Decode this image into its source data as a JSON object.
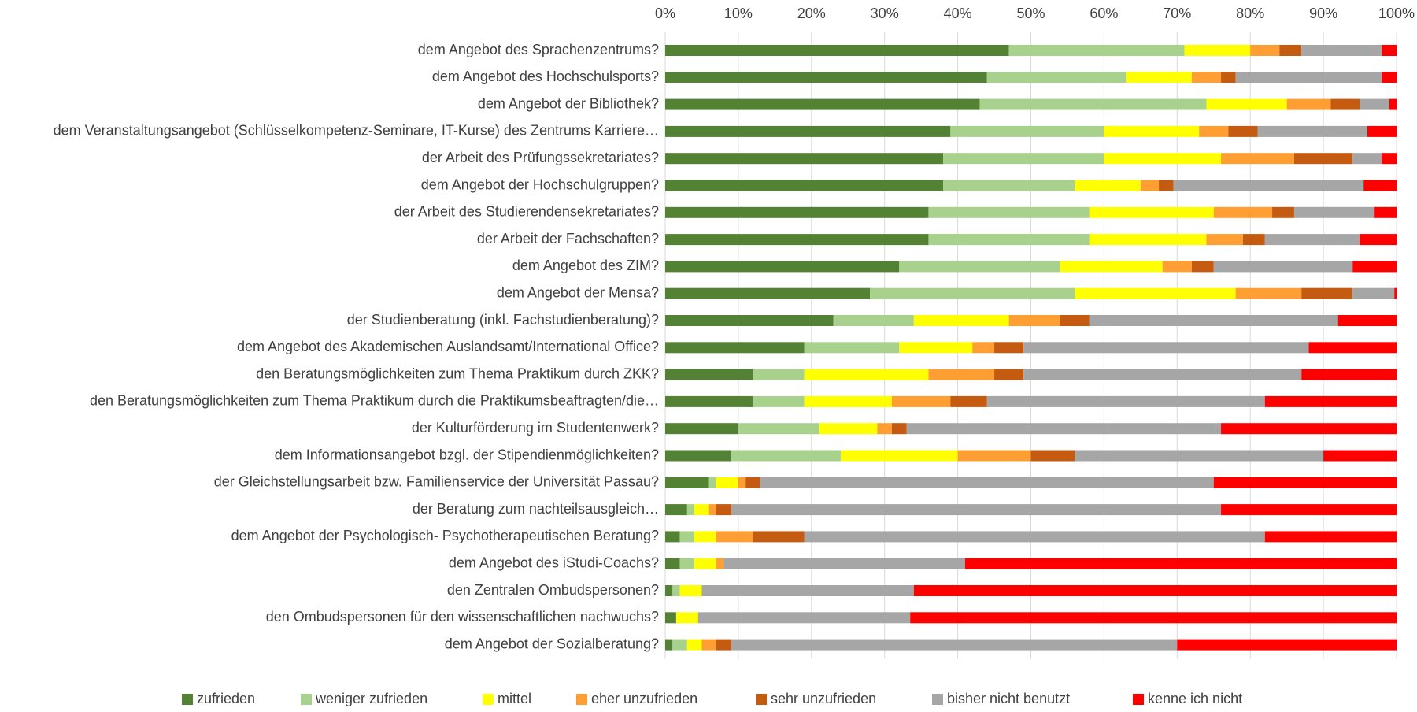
{
  "chart_data": {
    "type": "stacked_barh",
    "categories": [
      "dem Angebot des Sprachenzentrums?",
      "dem Angebot des Hochschulsports?",
      "dem Angebot der Bibliothek?",
      "dem Veranstaltungsangebot (Schlüsselkompetenz-Seminare, IT-Kurse) des Zentrums Karriere…",
      "der Arbeit des Prüfungssekretariates?",
      "dem Angebot der Hochschulgruppen?",
      "der Arbeit des Studierendensekretariates?",
      "der Arbeit der Fachschaften?",
      "dem Angebot des ZIM?",
      "dem Angebot der Mensa?",
      "der Studienberatung (inkl. Fachstudienberatung)?",
      "dem Angebot des Akademischen Auslandsamt/International Office?",
      "den Beratungsmöglichkeiten zum Thema Praktikum durch ZKK?",
      "den Beratungsmöglichkeiten zum Thema Praktikum durch die Praktikumsbeaftragten/die…",
      "der Kulturförderung im Studentenwerk?",
      "dem Informationsangebot bzgl. der Stipendienmöglichkeiten?",
      "der Gleichstellungsarbeit bzw. Familienservice der Universität Passau?",
      "der Beratung zum nachteilsausgleich…",
      "dem Angebot der Psychologisch- Psychotherapeutischen Beratung?",
      "dem Angebot des iStudi-Coachs?",
      "den Zentralen Ombudspersonen?",
      "den Ombudspersonen für den wissenschaftlichen nachwuchs?",
      "dem Angebot der Sozialberatung?"
    ],
    "series": [
      {
        "name": "zufrieden",
        "color": "#548235",
        "values": [
          47,
          44,
          43,
          39,
          38,
          38,
          36,
          36,
          32,
          28,
          23,
          19,
          12,
          12,
          10,
          9,
          6,
          3,
          2,
          2,
          1,
          1.5,
          1
        ]
      },
      {
        "name": "weniger zufrieden",
        "color": "#a9d18e",
        "values": [
          24,
          19,
          31,
          21,
          22,
          18,
          22,
          22,
          22,
          28,
          11,
          13,
          7,
          7,
          11,
          15,
          1,
          1,
          2,
          2,
          1,
          0,
          2
        ]
      },
      {
        "name": "mittel",
        "color": "#ffff00",
        "values": [
          9,
          9,
          11,
          13,
          16,
          9,
          17,
          16,
          14,
          22,
          13,
          10,
          17,
          12,
          8,
          16,
          3,
          2,
          3,
          3,
          3,
          3,
          2
        ]
      },
      {
        "name": "eher unzufrieden",
        "color": "#ff9f33",
        "values": [
          4,
          4,
          6,
          4,
          10,
          2.5,
          8,
          5,
          4,
          9,
          7,
          3,
          9,
          8,
          2,
          10,
          1,
          1,
          5,
          1,
          0,
          0,
          2
        ]
      },
      {
        "name": "sehr unzufrieden",
        "color": "#c55a11",
        "values": [
          3,
          2,
          4,
          4,
          8,
          2,
          3,
          3,
          3,
          7,
          4,
          4,
          4,
          5,
          2,
          6,
          2,
          2,
          7,
          0,
          0,
          0,
          2
        ]
      },
      {
        "name": "bisher nicht benutzt",
        "color": "#a6a6a6",
        "values": [
          11,
          20,
          4,
          15,
          4,
          26,
          11,
          13,
          19,
          5.7,
          34,
          39,
          38,
          38,
          43,
          34,
          62,
          67,
          63,
          33,
          29,
          29,
          61
        ]
      },
      {
        "name": "kenne ich nicht",
        "color": "#ff0000",
        "values": [
          2,
          2,
          1,
          4,
          2,
          4.5,
          3,
          5,
          6,
          0.3,
          8,
          12,
          13,
          18,
          24,
          10,
          25,
          24,
          18,
          59,
          66,
          66.5,
          30
        ]
      }
    ],
    "xlim": [
      0,
      100
    ],
    "xticks": [
      {
        "value": 0,
        "label": "0%"
      },
      {
        "value": 10,
        "label": "10%"
      },
      {
        "value": 20,
        "label": "20%"
      },
      {
        "value": 30,
        "label": "30%"
      },
      {
        "value": 40,
        "label": "40%"
      },
      {
        "value": 50,
        "label": "50%"
      },
      {
        "value": 60,
        "label": "60%"
      },
      {
        "value": 70,
        "label": "70%"
      },
      {
        "value": 80,
        "label": "80%"
      },
      {
        "value": 90,
        "label": "90%"
      },
      {
        "value": 100,
        "label": "100%"
      }
    ],
    "grid": true,
    "legend": "bottom"
  }
}
